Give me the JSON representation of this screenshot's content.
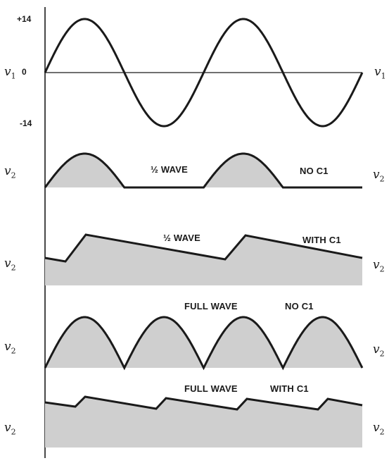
{
  "figure": {
    "rows": [
      {
        "id": "input-sine",
        "left_label": {
          "v": "v",
          "sub": "1"
        },
        "right_label": {
          "v": "v",
          "sub": "1"
        },
        "ticks": [
          "+14",
          "0",
          "-14"
        ],
        "texts": []
      },
      {
        "id": "half-wave-no-c1",
        "left_label": {
          "v": "v",
          "sub": "2"
        },
        "right_label": {
          "v": "v",
          "sub": "2"
        },
        "texts": [
          "½ WAVE",
          "NO C1"
        ]
      },
      {
        "id": "half-wave-with-c1",
        "left_label": {
          "v": "v",
          "sub": "2"
        },
        "right_label": {
          "v": "v",
          "sub": "2"
        },
        "texts": [
          "½ WAVE",
          "WITH C1"
        ]
      },
      {
        "id": "full-wave-no-c1",
        "left_label": {
          "v": "v",
          "sub": "2"
        },
        "right_label": {
          "v": "v",
          "sub": "2"
        },
        "texts": [
          "FULL WAVE",
          "NO C1"
        ]
      },
      {
        "id": "full-wave-with-c1",
        "left_label": {
          "v": "v",
          "sub": "2"
        },
        "right_label": {
          "v": "v",
          "sub": "2"
        },
        "texts": [
          "FULL WAVE",
          "WITH C1"
        ]
      }
    ],
    "colors": {
      "line": "#1a1a1a",
      "fill": "#cfcfcf"
    }
  }
}
